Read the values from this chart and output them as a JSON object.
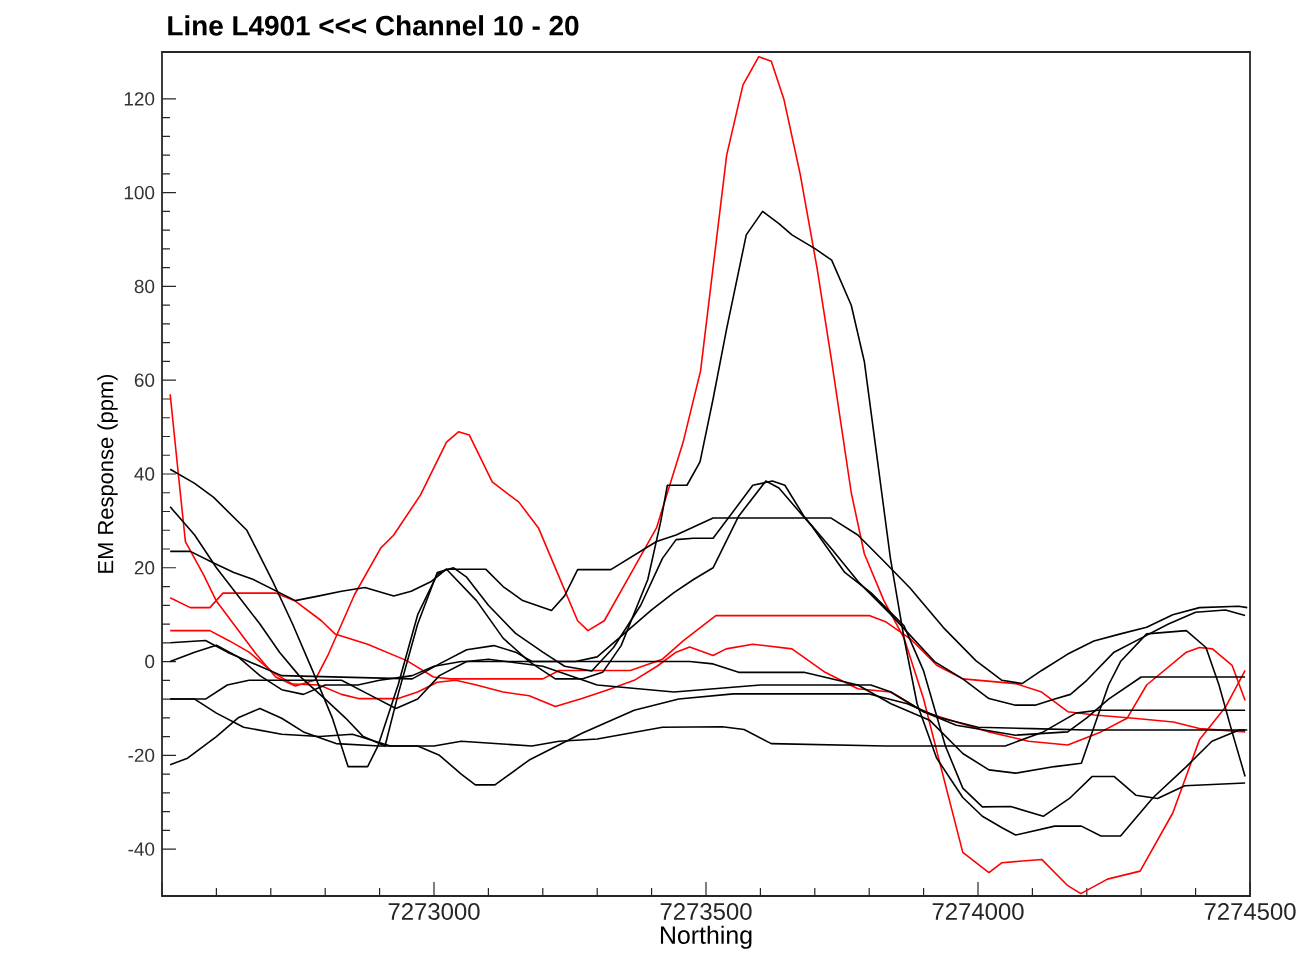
{
  "chart_data": {
    "type": "line",
    "title": "Line L4901 <<< Channel 10 - 20",
    "xlabel": "Northing",
    "ylabel": "EM Response (ppm)",
    "xlim": [
      7272500,
      7274500
    ],
    "ylim": [
      -50,
      130
    ],
    "xticks": [
      {
        "value": 7272500,
        "label": null
      },
      7273000,
      7273500,
      7274000,
      7274500
    ],
    "yticks": [
      -40,
      -20,
      0,
      20,
      40,
      60,
      80,
      100,
      120
    ],
    "line_style": "solid",
    "series": [
      {
        "color": "#ff0000",
        "x": [
          7272515,
          7272530,
          7272543,
          7272576,
          7272600,
          7272636,
          7272673,
          7272709,
          7272745,
          7272781,
          7272806,
          7272854,
          7272902,
          7272926,
          7272975,
          7273023,
          7273045,
          7273065,
          7273107,
          7273156,
          7273192,
          7273228,
          7273264,
          7273283,
          7273313,
          7273361,
          7273409,
          7273458,
          7273490,
          7273538,
          7273568,
          7273597,
          7273620,
          7273643,
          7273673,
          7273704,
          7273731,
          7273749,
          7273767,
          7273791,
          7273827,
          7273864,
          7273900,
          7273924,
          7273972,
          7274020,
          7274044,
          7274117,
          7274165,
          7274189,
          7274238,
          7274298,
          7274358,
          7274407,
          7274455,
          7274491
        ],
        "values": [
          57,
          40,
          25.6,
          18.6,
          12.9,
          7.3,
          1.6,
          -3.3,
          -5.2,
          -4,
          1.6,
          14.3,
          24.2,
          27,
          35.5,
          46.8,
          49,
          48.3,
          38.3,
          34,
          28.5,
          18.6,
          8.7,
          6.6,
          8.7,
          18.6,
          28.5,
          46.8,
          62,
          108,
          123,
          129,
          128,
          120,
          104,
          84,
          64,
          50,
          36,
          23,
          13,
          5,
          -8,
          -19,
          -40.7,
          -45,
          -42.9,
          -42.2,
          -47.8,
          -49.5,
          -46.4,
          -44.7,
          -32.3,
          -16.7,
          -9.7,
          -1.9
        ]
      },
      {
        "color": "#ff0000",
        "x": [
          7272515,
          7272552,
          7272588,
          7272612,
          7272709,
          7272745,
          7272793,
          7272818,
          7272878,
          7272950,
          7272999,
          7273030,
          7273200,
          7273230,
          7273361,
          7273420,
          7273458,
          7273490,
          7273518,
          7273800,
          7273830,
          7273876,
          7273924,
          7273972,
          7274069,
          7274117,
          7274165,
          7274214,
          7274286,
          7274359,
          7274407,
          7274491
        ],
        "values": [
          13.6,
          11.5,
          11.5,
          14.6,
          14.6,
          12.9,
          8.7,
          5.9,
          3.7,
          0.2,
          -3.3,
          -3.7,
          -3.7,
          -1.9,
          -1.9,
          0.5,
          4.4,
          7.3,
          9.8,
          9.8,
          8.5,
          4.8,
          -0.8,
          -3.7,
          -4.7,
          -6.5,
          -10.7,
          -11.4,
          -12.1,
          -12.9,
          -14.3,
          -15
        ]
      },
      {
        "color": "#ff0000",
        "x": [
          7272515,
          7272588,
          7272624,
          7272660,
          7272704,
          7272740,
          7272789,
          7272830,
          7272861,
          7272934,
          7272970,
          7273006,
          7273040,
          7273078,
          7273127,
          7273175,
          7273223,
          7273272,
          7273320,
          7273368,
          7273410,
          7273445,
          7273470,
          7273513,
          7273537,
          7273586,
          7273658,
          7273719,
          7273779,
          7273839,
          7273900,
          7273960,
          7274020,
          7274093,
          7274165,
          7274226,
          7274274,
          7274310,
          7274383,
          7274407,
          7274431,
          7274467,
          7274491
        ],
        "values": [
          6.6,
          6.6,
          4.4,
          2,
          -2.3,
          -4.8,
          -5,
          -7,
          -7.9,
          -7.9,
          -6.5,
          -4.4,
          -4,
          -5,
          -6.5,
          -7.3,
          -9.6,
          -7.9,
          -6,
          -4,
          -1,
          2,
          3.1,
          1.3,
          2.7,
          3.7,
          2.7,
          -2.3,
          -5.8,
          -6.5,
          -10.7,
          -12.9,
          -15,
          -17,
          -17.8,
          -15,
          -12.1,
          -5,
          2,
          3,
          2.7,
          -0.8,
          -8.3
        ]
      },
      {
        "color": "#000000",
        "x": [
          7272515,
          7272560,
          7272595,
          7272656,
          7272704,
          7272740,
          7272777,
          7272813,
          7272842,
          7272878,
          7272897,
          7272934,
          7272970,
          7273006,
          7273023,
          7273078,
          7273127,
          7273175,
          7273223,
          7273272,
          7273310,
          7273344,
          7273393,
          7273417,
          7273429,
          7273465,
          7273489,
          7273513,
          7273538,
          7273574,
          7273604,
          7273634,
          7273658,
          7273701,
          7273731,
          7273767,
          7273791,
          7273815,
          7273839,
          7273864,
          7273888,
          7273924,
          7273972,
          7274008,
          7274045,
          7274069,
          7274141,
          7274190,
          7274226,
          7274262,
          7274322,
          7274383,
          7274430,
          7274480,
          7274495
        ],
        "values": [
          41,
          38,
          35,
          28,
          17,
          8,
          -2,
          -12,
          -22.4,
          -22.4,
          -18,
          -5,
          10,
          18.6,
          19.7,
          13,
          5,
          0,
          -3.7,
          -3.7,
          -2.3,
          3.4,
          17.5,
          30,
          37.6,
          37.6,
          42.6,
          56,
          71,
          91,
          96,
          93.4,
          91,
          88,
          85.6,
          76,
          64,
          43,
          22,
          5,
          -9,
          -20.6,
          -29,
          -33,
          -35.5,
          -37,
          -35.1,
          -35.1,
          -37.2,
          -37.2,
          -29,
          -22.4,
          -17,
          -14.6,
          -14.6
        ]
      },
      {
        "color": "#000000",
        "x": [
          7272515,
          7272560,
          7272600,
          7272640,
          7272680,
          7272716,
          7272752,
          7272800,
          7272837,
          7272870,
          7272910,
          7272934,
          7272970,
          7273006,
          7273036,
          7273060,
          7273100,
          7273150,
          7273200,
          7273240,
          7273290,
          7273330,
          7273380,
          7273420,
          7273445,
          7273477,
          7273513,
          7273550,
          7273586,
          7273622,
          7273645,
          7273680,
          7273731,
          7273780,
          7273840,
          7273880,
          7273920,
          7273972,
          7274020,
          7274069,
          7274105,
          7274141,
          7274170,
          7274200,
          7274250,
          7274300,
          7274350,
          7274400,
          7274455,
          7274491
        ],
        "values": [
          33,
          27,
          20,
          14,
          8,
          2,
          -3,
          -8,
          -12,
          -16,
          -18,
          -7,
          8,
          19,
          20,
          18,
          12,
          6,
          2,
          -1,
          -2,
          3,
          12,
          22,
          26,
          26.3,
          26.3,
          32,
          37.6,
          38.5,
          37.6,
          31,
          24,
          17,
          10,
          5,
          0,
          -3.7,
          -7.9,
          -9.3,
          -9.3,
          -8,
          -7,
          -4,
          2,
          5,
          8,
          10.5,
          11,
          9.8
        ]
      },
      {
        "color": "#000000",
        "x": [
          7272515,
          7272552,
          7272595,
          7272632,
          7272668,
          7272745,
          7272789,
          7272830,
          7272873,
          7272926,
          7272958,
          7272994,
          7273023,
          7273095,
          7273127,
          7273163,
          7273216,
          7273240,
          7273264,
          7273325,
          7273409,
          7273445,
          7273513,
          7273730,
          7273779,
          7273827,
          7273875,
          7273936,
          7273996,
          7274044,
          7274081,
          7274117,
          7274165,
          7274213,
          7274262,
          7274310,
          7274358,
          7274407,
          7274479,
          7274495
        ],
        "values": [
          23.5,
          23.5,
          21,
          19,
          17.5,
          13,
          14,
          15,
          15.8,
          14,
          15,
          17,
          19.7,
          19.7,
          16,
          13,
          10.9,
          14,
          19.6,
          19.6,
          25.6,
          27,
          30.6,
          30.6,
          27,
          21.4,
          15.7,
          7.3,
          0.2,
          -4,
          -4.7,
          -1.9,
          1.6,
          4.4,
          5.9,
          7.3,
          10,
          11.5,
          11.8,
          11.5
        ]
      },
      {
        "color": "#000000",
        "x": [
          7272515,
          7272580,
          7272620,
          7272680,
          7272720,
          7272960,
          7273010,
          7273060,
          7273110,
          7273150,
          7273180,
          7273260,
          7273300,
          7273340,
          7273400,
          7273441,
          7273477,
          7273513,
          7273560,
          7273610,
          7273634,
          7273695,
          7273755,
          7273803,
          7273864,
          7273900,
          7273940,
          7273972,
          7274008,
          7274060,
          7274120,
          7274170,
          7274210,
          7274250,
          7274290,
          7274330,
          7274380,
          7274491
        ],
        "values": [
          4,
          4.5,
          2,
          -1,
          -3,
          -3.7,
          -0.5,
          2.5,
          3.4,
          2,
          0,
          0,
          1,
          5,
          11,
          14.7,
          17.5,
          20,
          31,
          38.5,
          37,
          28.8,
          19,
          14.7,
          7.6,
          -2,
          -18,
          -27,
          -31,
          -30.9,
          -33,
          -29,
          -24.5,
          -24.5,
          -28.5,
          -29.2,
          -26.5,
          -25.9
        ]
      },
      {
        "color": "#000000",
        "x": [
          7272515,
          7272560,
          7272600,
          7272640,
          7272680,
          7272720,
          7272760,
          7272800,
          7272860,
          7272900,
          7272960,
          7273000,
          7273050,
          7273470,
          7273513,
          7273560,
          7273680,
          7273779,
          7273840,
          7273911,
          7273972,
          7274020,
          7274069,
          7274141,
          7274190,
          7274213,
          7274240,
          7274262,
          7274310,
          7274383,
          7274419,
          7274443,
          7274467,
          7274491
        ],
        "values": [
          0,
          2,
          3.5,
          1,
          -3,
          -6,
          -7,
          -5,
          -5,
          -4,
          -3,
          -1,
          0,
          0,
          -0.5,
          -2.3,
          -2.3,
          -5,
          -9,
          -12.5,
          -19.6,
          -23.1,
          -23.8,
          -22.4,
          -21.7,
          -14,
          -5,
          0,
          5.9,
          6.6,
          3,
          -5,
          -15,
          -24.5
        ]
      },
      {
        "color": "#000000",
        "x": [
          7272515,
          7272580,
          7272620,
          7272660,
          7272830,
          7272880,
          7272930,
          7272970,
          7273010,
          7273060,
          7273100,
          7273200,
          7273300,
          7273441,
          7273600,
          7273803,
          7273840,
          7273900,
          7273960,
          7274069,
          7274165,
          7274200,
          7274240,
          7274300,
          7274491
        ],
        "values": [
          -8,
          -8,
          -5,
          -4,
          -4,
          -7,
          -10,
          -8,
          -3,
          0,
          0.5,
          -1,
          -5,
          -6.5,
          -5,
          -5,
          -6.5,
          -10.7,
          -13.6,
          -15.7,
          -15,
          -12,
          -8,
          -3.3,
          -3.3
        ]
      },
      {
        "color": "#000000",
        "x": [
          7272515,
          7272560,
          7272600,
          7272650,
          7272720,
          7272790,
          7272850,
          7272920,
          7273000,
          7273050,
          7273180,
          7273230,
          7273300,
          7273420,
          7273530,
          7273570,
          7273620,
          7273830,
          7274050,
          7274120,
          7274180,
          7274220,
          7274491
        ],
        "values": [
          -8,
          -8,
          -11,
          -14,
          -15.5,
          -16,
          -15.5,
          -18,
          -18,
          -17,
          -18,
          -17,
          -16.5,
          -14,
          -13.9,
          -14.5,
          -17.5,
          -18,
          -18,
          -15,
          -11,
          -10.4,
          -10.4
        ]
      },
      {
        "color": "#000000",
        "x": [
          7272515,
          7272547,
          7272600,
          7272640,
          7272680,
          7272720,
          7272760,
          7272820,
          7272900,
          7272970,
          7273010,
          7273050,
          7273076,
          7273112,
          7273175,
          7273272,
          7273368,
          7273450,
          7273550,
          7273800,
          7273870,
          7273930,
          7274000,
          7274100,
          7274200,
          7274491
        ],
        "values": [
          -22,
          -20.6,
          -16,
          -12,
          -10,
          -12.1,
          -15,
          -17.5,
          -18,
          -18,
          -20,
          -24,
          -26.3,
          -26.3,
          -21,
          -15.3,
          -10.4,
          -8,
          -6.9,
          -6.9,
          -9,
          -12,
          -14,
          -14.3,
          -14.6,
          -14.6
        ]
      }
    ]
  }
}
